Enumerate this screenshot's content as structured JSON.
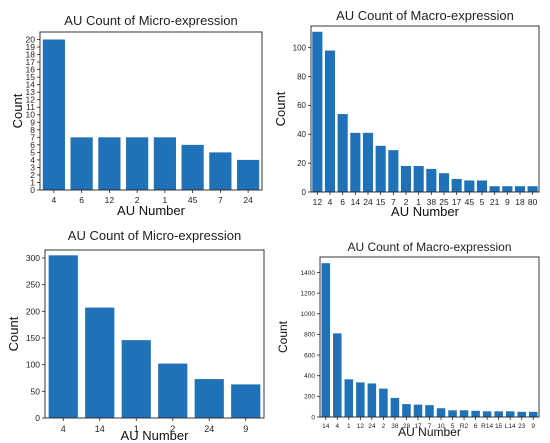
{
  "chart_data": [
    {
      "type": "bar",
      "title": "AU Count of Micro-expression",
      "xlabel": "AU Number",
      "ylabel": "Count",
      "categories": [
        "4",
        "6",
        "12",
        "2",
        "1",
        "45",
        "7",
        "24"
      ],
      "values": [
        20,
        7,
        7,
        7,
        7,
        6,
        5,
        4
      ],
      "ylim": [
        0,
        21
      ],
      "yticks": [
        0,
        1,
        2,
        3,
        4,
        5,
        6,
        7,
        8,
        9,
        10,
        11,
        12,
        13,
        14,
        15,
        16,
        17,
        18,
        19,
        20
      ],
      "color": "#1f72b8",
      "grid": false,
      "legend": "none"
    },
    {
      "type": "bar",
      "title": "AU Count of Macro-expression",
      "xlabel": "AU Number",
      "ylabel": "Count",
      "categories": [
        "12",
        "4",
        "6",
        "14",
        "24",
        "15",
        "7",
        "2",
        "1",
        "38",
        "25",
        "17",
        "45",
        "5",
        "21",
        "9",
        "18",
        "80"
      ],
      "values": [
        111,
        98,
        54,
        41,
        41,
        32,
        29,
        18,
        18,
        16,
        13,
        9,
        8,
        8,
        4,
        4,
        4,
        4
      ],
      "ylim": [
        0,
        115
      ],
      "yticks": [
        0,
        20,
        40,
        60,
        80,
        100
      ],
      "color": "#1f72b8",
      "grid": false,
      "legend": "none"
    },
    {
      "type": "bar",
      "title": "AU Count of Micro-expression",
      "xlabel": "AU Number",
      "ylabel": "Count",
      "categories": [
        "4",
        "14",
        "1",
        "2",
        "24",
        "9"
      ],
      "values": [
        305,
        207,
        146,
        102,
        73,
        63
      ],
      "ylim": [
        0,
        315
      ],
      "yticks": [
        0,
        50,
        100,
        150,
        200,
        250,
        300
      ],
      "color": "#1f72b8",
      "grid": false,
      "legend": "none"
    },
    {
      "type": "bar",
      "title": "AU Count of Macro-expression",
      "xlabel": "AU Number",
      "ylabel": "Count",
      "categories": [
        "14",
        "4",
        "1",
        "12",
        "24",
        "2",
        "38",
        "28",
        "17",
        "7",
        "10",
        "5",
        "R2",
        "6",
        "R14",
        "15",
        "L14",
        "23",
        "9"
      ],
      "values": [
        1490,
        810,
        365,
        335,
        325,
        275,
        185,
        125,
        120,
        115,
        85,
        65,
        65,
        60,
        55,
        55,
        55,
        50,
        50
      ],
      "ylim": [
        0,
        1550
      ],
      "yticks": [
        0,
        200,
        400,
        600,
        800,
        1000,
        1200,
        1400
      ],
      "color": "#1f72b8",
      "grid": false,
      "legend": "none"
    }
  ]
}
